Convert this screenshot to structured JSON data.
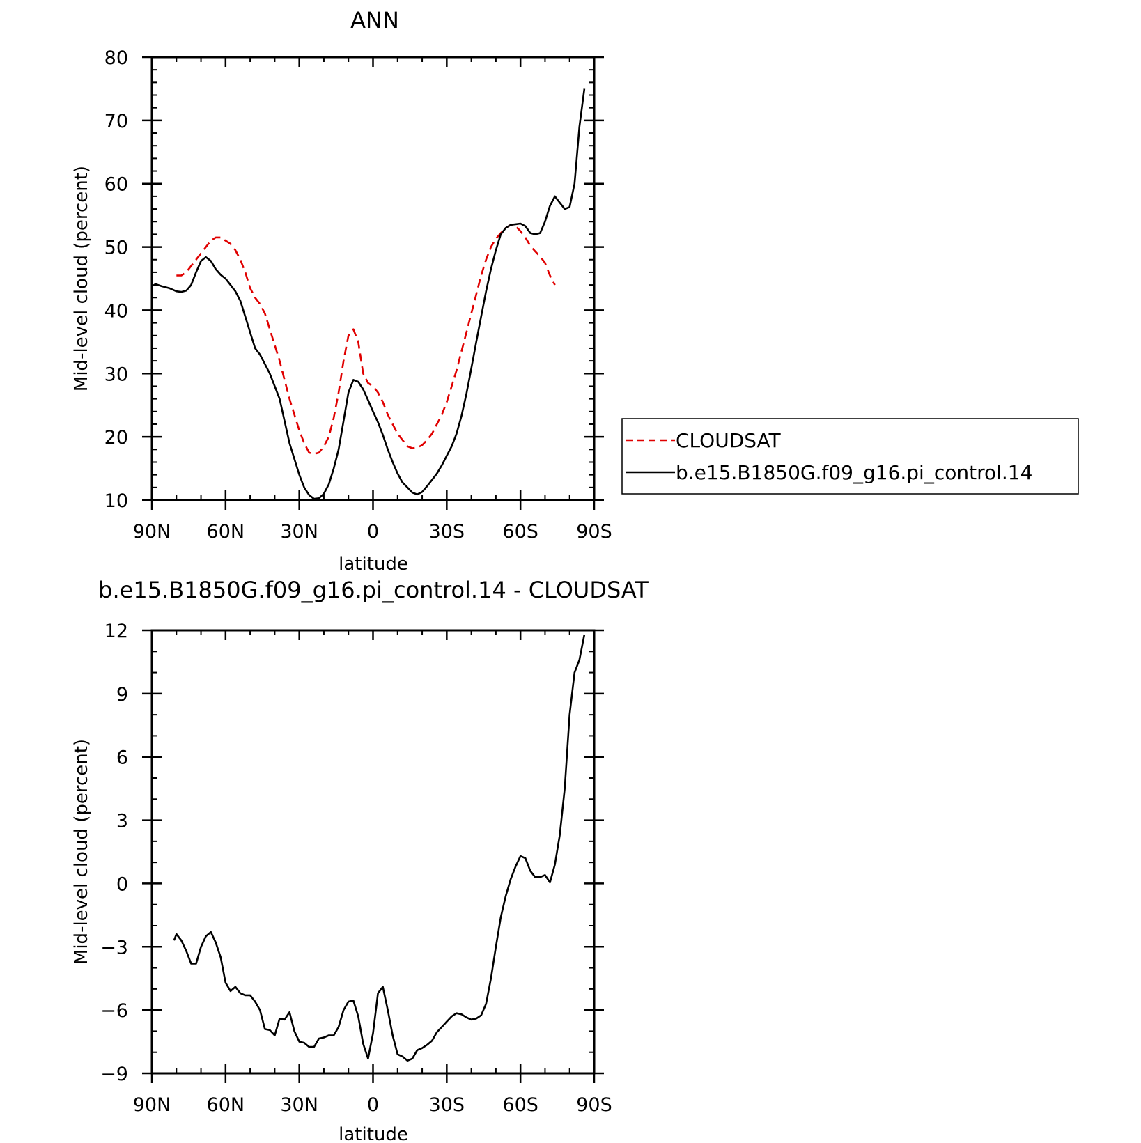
{
  "chart_data": [
    {
      "type": "line",
      "title": "ANN",
      "xlabel": "latitude",
      "ylabel": "Mid-level cloud (percent)",
      "xlim": [
        90,
        -90
      ],
      "ylim": [
        10,
        80
      ],
      "xticks": [
        90,
        60,
        30,
        0,
        -30,
        -60,
        -90
      ],
      "xtick_labels": [
        "90N",
        "60N",
        "30N",
        "0",
        "30S",
        "60S",
        "90S"
      ],
      "yticks": [
        10,
        20,
        30,
        40,
        50,
        60,
        70,
        80
      ],
      "ytick_labels": [
        "10",
        "20",
        "30",
        "40",
        "50",
        "60",
        "70",
        "80"
      ],
      "legend": "right",
      "series": [
        {
          "name": "CLOUDSAT",
          "color": "#e00000",
          "dash": "dashed",
          "points": [
            [
              80,
              45.5
            ],
            [
              78,
              45.5
            ],
            [
              76,
              46
            ],
            [
              74,
              47
            ],
            [
              72,
              48
            ],
            [
              70,
              49
            ],
            [
              68,
              50
            ],
            [
              66,
              51
            ],
            [
              64,
              51.5
            ],
            [
              62,
              51.5
            ],
            [
              60,
              51
            ],
            [
              58,
              50.5
            ],
            [
              56,
              49.5
            ],
            [
              54,
              48
            ],
            [
              52,
              46
            ],
            [
              50,
              43.5
            ],
            [
              48,
              42
            ],
            [
              46,
              41
            ],
            [
              44,
              39.5
            ],
            [
              42,
              37
            ],
            [
              40,
              34.5
            ],
            [
              38,
              32
            ],
            [
              36,
              29
            ],
            [
              34,
              26
            ],
            [
              32,
              23.5
            ],
            [
              30,
              21
            ],
            [
              28,
              19
            ],
            [
              26,
              17.5
            ],
            [
              24,
              17.3
            ],
            [
              22,
              17.5
            ],
            [
              20,
              18.5
            ],
            [
              18,
              20
            ],
            [
              16,
              23
            ],
            [
              14,
              27
            ],
            [
              12,
              32
            ],
            [
              10,
              36
            ],
            [
              8,
              37
            ],
            [
              6,
              35
            ],
            [
              4,
              30
            ],
            [
              2,
              28.5
            ],
            [
              0,
              28
            ],
            [
              -2,
              27
            ],
            [
              -4,
              25.5
            ],
            [
              -6,
              23.5
            ],
            [
              -8,
              22
            ],
            [
              -10,
              20.5
            ],
            [
              -12,
              19.5
            ],
            [
              -14,
              18.5
            ],
            [
              -16,
              18.2
            ],
            [
              -18,
              18.3
            ],
            [
              -20,
              18.7
            ],
            [
              -22,
              19.5
            ],
            [
              -24,
              20.5
            ],
            [
              -26,
              22
            ],
            [
              -28,
              23.5
            ],
            [
              -30,
              25.5
            ],
            [
              -32,
              28
            ],
            [
              -34,
              30.5
            ],
            [
              -36,
              33.5
            ],
            [
              -38,
              36.5
            ],
            [
              -40,
              39.5
            ],
            [
              -42,
              42.5
            ],
            [
              -44,
              45.5
            ],
            [
              -46,
              48
            ],
            [
              -48,
              50
            ],
            [
              -50,
              51.3
            ],
            [
              -52,
              52.2
            ],
            [
              -54,
              53
            ],
            [
              -56,
              53.5
            ],
            [
              -58,
              53.3
            ],
            [
              -60,
              52.5
            ],
            [
              -62,
              51.5
            ],
            [
              -64,
              50.2
            ],
            [
              -66,
              49.3
            ],
            [
              -68,
              48.5
            ],
            [
              -70,
              47.5
            ],
            [
              -72,
              45.5
            ],
            [
              -74,
              44
            ]
          ]
        },
        {
          "name": "b.e15.B1850G.f09_g16.pi_control.14",
          "color": "#000000",
          "dash": "solid",
          "points": [
            [
              89,
              44.2
            ],
            [
              86,
              43.8
            ],
            [
              83,
              43.5
            ],
            [
              80,
              43
            ],
            [
              78,
              42.9
            ],
            [
              76,
              43.1
            ],
            [
              74,
              44
            ],
            [
              72,
              46
            ],
            [
              70,
              47.8
            ],
            [
              68,
              48.4
            ],
            [
              66,
              47.8
            ],
            [
              64,
              46.5
            ],
            [
              62,
              45.6
            ],
            [
              60,
              45
            ],
            [
              58,
              44
            ],
            [
              56,
              43
            ],
            [
              54,
              41.5
            ],
            [
              52,
              39
            ],
            [
              50,
              36.5
            ],
            [
              48,
              34
            ],
            [
              46,
              33
            ],
            [
              44,
              31.5
            ],
            [
              42,
              30
            ],
            [
              40,
              28
            ],
            [
              38,
              26
            ],
            [
              36,
              22.5
            ],
            [
              34,
              19
            ],
            [
              32,
              16.5
            ],
            [
              30,
              14
            ],
            [
              28,
              12
            ],
            [
              26,
              10.8
            ],
            [
              24,
              10.2
            ],
            [
              22,
              10.3
            ],
            [
              20,
              11
            ],
            [
              18,
              12.5
            ],
            [
              16,
              15
            ],
            [
              14,
              18
            ],
            [
              12,
              22.5
            ],
            [
              10,
              27
            ],
            [
              8,
              29
            ],
            [
              6,
              28.7
            ],
            [
              4,
              27.5
            ],
            [
              2,
              25.8
            ],
            [
              0,
              24
            ],
            [
              -2,
              22.3
            ],
            [
              -4,
              20.3
            ],
            [
              -6,
              18
            ],
            [
              -8,
              16
            ],
            [
              -10,
              14.2
            ],
            [
              -12,
              12.8
            ],
            [
              -14,
              12
            ],
            [
              -16,
              11.2
            ],
            [
              -18,
              10.9
            ],
            [
              -20,
              11.3
            ],
            [
              -22,
              12.2
            ],
            [
              -24,
              13.2
            ],
            [
              -26,
              14.2
            ],
            [
              -28,
              15.5
            ],
            [
              -30,
              17
            ],
            [
              -32,
              18.5
            ],
            [
              -34,
              20.5
            ],
            [
              -36,
              23.3
            ],
            [
              -38,
              26.8
            ],
            [
              -40,
              30.8
            ],
            [
              -42,
              35
            ],
            [
              -44,
              39
            ],
            [
              -46,
              43
            ],
            [
              -48,
              46.5
            ],
            [
              -50,
              49.5
            ],
            [
              -52,
              52
            ],
            [
              -54,
              53
            ],
            [
              -56,
              53.5
            ],
            [
              -58,
              53.6
            ],
            [
              -60,
              53.7
            ],
            [
              -62,
              53.3
            ],
            [
              -64,
              52.2
            ],
            [
              -66,
              52
            ],
            [
              -68,
              52.2
            ],
            [
              -70,
              54
            ],
            [
              -72,
              56.5
            ],
            [
              -74,
              58
            ],
            [
              -76,
              57
            ],
            [
              -78,
              56
            ],
            [
              -80,
              56.3
            ],
            [
              -82,
              60
            ],
            [
              -84,
              69
            ],
            [
              -86,
              75
            ]
          ]
        }
      ]
    },
    {
      "type": "line",
      "title": "b.e15.B1850G.f09_g16.pi_control.14 - CLOUDSAT",
      "xlabel": "latitude",
      "ylabel": "Mid-level cloud (percent)",
      "xlim": [
        90,
        -90
      ],
      "ylim": [
        -9,
        12
      ],
      "xticks": [
        90,
        60,
        30,
        0,
        -30,
        -60,
        -90
      ],
      "xtick_labels": [
        "90N",
        "60N",
        "30N",
        "0",
        "30S",
        "60S",
        "90S"
      ],
      "yticks": [
        -9,
        -6,
        -3,
        0,
        3,
        6,
        9,
        12
      ],
      "ytick_labels": [
        "−9",
        "−6",
        "−3",
        "0",
        "3",
        "6",
        "9",
        "12"
      ],
      "series": [
        {
          "color": "#000000",
          "dash": "solid",
          "points": [
            [
              81,
              -2.7
            ],
            [
              80,
              -2.4
            ],
            [
              78,
              -2.7
            ],
            [
              76,
              -3.2
            ],
            [
              74,
              -3.8
            ],
            [
              72,
              -3.8
            ],
            [
              70,
              -3
            ],
            [
              68,
              -2.5
            ],
            [
              66,
              -2.3
            ],
            [
              64,
              -2.8
            ],
            [
              62,
              -3.5
            ],
            [
              60,
              -4.7
            ],
            [
              58,
              -5.1
            ],
            [
              56,
              -4.9
            ],
            [
              54,
              -5.2
            ],
            [
              52,
              -5.3
            ],
            [
              50,
              -5.3
            ],
            [
              48,
              -5.6
            ],
            [
              46,
              -6
            ],
            [
              44,
              -6.9
            ],
            [
              42,
              -6.95
            ],
            [
              40,
              -7.2
            ],
            [
              38,
              -6.4
            ],
            [
              36,
              -6.45
            ],
            [
              34,
              -6.1
            ],
            [
              32,
              -7
            ],
            [
              30,
              -7.5
            ],
            [
              28,
              -7.55
            ],
            [
              26,
              -7.75
            ],
            [
              24,
              -7.75
            ],
            [
              22,
              -7.35
            ],
            [
              20,
              -7.3
            ],
            [
              18,
              -7.2
            ],
            [
              16,
              -7.2
            ],
            [
              14,
              -6.8
            ],
            [
              12,
              -6
            ],
            [
              10,
              -5.6
            ],
            [
              8,
              -5.55
            ],
            [
              6,
              -6.3
            ],
            [
              4,
              -7.6
            ],
            [
              2,
              -8.3
            ],
            [
              0,
              -7.1
            ],
            [
              -2,
              -5.2
            ],
            [
              -4,
              -4.9
            ],
            [
              -6,
              -6
            ],
            [
              -8,
              -7.2
            ],
            [
              -10,
              -8.1
            ],
            [
              -12,
              -8.2
            ],
            [
              -14,
              -8.4
            ],
            [
              -16,
              -8.3
            ],
            [
              -18,
              -7.9
            ],
            [
              -20,
              -7.8
            ],
            [
              -22,
              -7.65
            ],
            [
              -24,
              -7.45
            ],
            [
              -26,
              -7.05
            ],
            [
              -28,
              -6.8
            ],
            [
              -30,
              -6.55
            ],
            [
              -32,
              -6.3
            ],
            [
              -34,
              -6.15
            ],
            [
              -36,
              -6.2
            ],
            [
              -38,
              -6.35
            ],
            [
              -40,
              -6.45
            ],
            [
              -42,
              -6.4
            ],
            [
              -44,
              -6.25
            ],
            [
              -46,
              -5.7
            ],
            [
              -48,
              -4.5
            ],
            [
              -50,
              -3
            ],
            [
              -52,
              -1.6
            ],
            [
              -54,
              -0.6
            ],
            [
              -56,
              0.2
            ],
            [
              -58,
              0.8
            ],
            [
              -60,
              1.3
            ],
            [
              -62,
              1.2
            ],
            [
              -64,
              0.6
            ],
            [
              -66,
              0.3
            ],
            [
              -68,
              0.3
            ],
            [
              -70,
              0.4
            ],
            [
              -72,
              0.05
            ],
            [
              -74,
              0.9
            ],
            [
              -76,
              2.3
            ],
            [
              -78,
              4.5
            ],
            [
              -80,
              8
            ],
            [
              -82,
              10
            ],
            [
              -84,
              10.6
            ],
            [
              -86,
              11.8
            ]
          ]
        }
      ]
    }
  ]
}
